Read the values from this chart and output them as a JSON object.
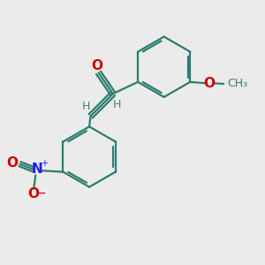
{
  "bg_color": "#ebebeb",
  "bond_color": "#2d7d6e",
  "o_color": "#cc0000",
  "n_color": "#1a1aff",
  "h_color": "#4a8070",
  "line_width": 1.6,
  "font_size": 10,
  "figsize": [
    3.0,
    3.0
  ],
  "dpi": 100,
  "xlim": [
    0,
    10
  ],
  "ylim": [
    0,
    10
  ]
}
